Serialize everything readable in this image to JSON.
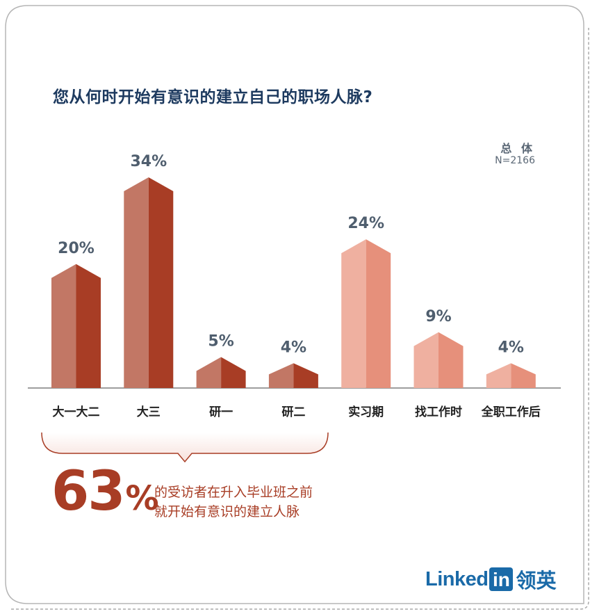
{
  "brand_colors": {
    "dark_left": "#c27765",
    "dark_right": "#a83d25",
    "light_left": "#efb0a0",
    "light_right": "#e6907b",
    "accent": "#a83d25",
    "title": "#1d3a5f",
    "logo": "#1a6aa8"
  },
  "chart_data": {
    "type": "bar",
    "title": "您从何时开始有意识的建立自己的职场人脉?",
    "legend": {
      "label": "总 体",
      "n": "N=2166"
    },
    "categories": [
      "大一大二",
      "大三",
      "研一",
      "研二",
      "实习期",
      "找工作时",
      "全职工作后"
    ],
    "values": [
      20,
      34,
      5,
      4,
      24,
      9,
      4
    ],
    "value_labels": [
      "20%",
      "34%",
      "5%",
      "4%",
      "24%",
      "9%",
      "4%"
    ],
    "color_groups": [
      "dark",
      "dark",
      "dark",
      "dark",
      "light",
      "light",
      "light"
    ],
    "ylim": [
      0,
      34
    ],
    "xlabel": "",
    "ylabel": ""
  },
  "callout": {
    "number": "63",
    "percent": "%",
    "line1": "的受访者在升入毕业班之前",
    "line2": "就开始有意识的建立人脉"
  },
  "logo": {
    "text": "Linked",
    "in": "in",
    "cn": "领英"
  }
}
